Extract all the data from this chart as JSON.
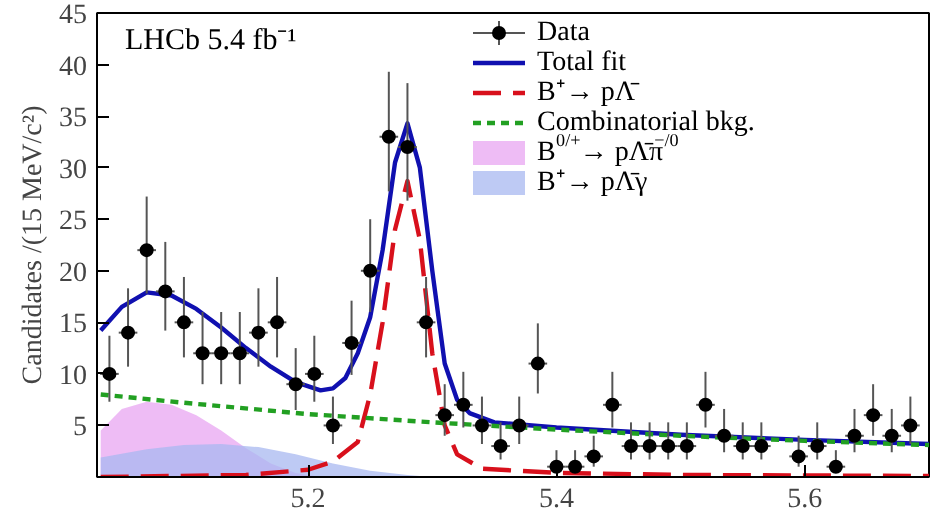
{
  "chart_data": {
    "type": "scatter",
    "ylabel": "Candidates /(15 MeV/c²)",
    "xlim": [
      5.03,
      5.7
    ],
    "ylim": [
      0,
      45
    ],
    "xticks": [
      5.2,
      5.4,
      5.6
    ],
    "yticks": [
      5,
      10,
      15,
      20,
      25,
      30,
      35,
      40,
      45
    ],
    "grid": false,
    "legend": "top right",
    "annotations": [
      "LHCb  5.4 fb⁻¹"
    ],
    "series": [
      {
        "name": "Data",
        "color": "#000000",
        "marker": "circle",
        "x": [
          5.04,
          5.055,
          5.07,
          5.085,
          5.1,
          5.115,
          5.13,
          5.145,
          5.16,
          5.175,
          5.19,
          5.205,
          5.22,
          5.235,
          5.25,
          5.265,
          5.28,
          5.295,
          5.31,
          5.325,
          5.34,
          5.355,
          5.37,
          5.385,
          5.4,
          5.415,
          5.43,
          5.445,
          5.46,
          5.475,
          5.49,
          5.505,
          5.52,
          5.535,
          5.55,
          5.565,
          5.595,
          5.61,
          5.625,
          5.64,
          5.655,
          5.67,
          5.685
        ],
        "values": [
          10,
          14,
          22,
          18,
          15,
          12,
          12,
          12,
          14,
          15,
          9,
          10,
          5,
          13,
          20,
          33,
          32,
          15,
          6,
          7,
          5,
          3,
          5,
          11,
          1,
          1,
          2,
          7,
          3,
          3,
          3,
          3,
          7,
          4,
          3,
          3,
          2,
          3,
          1,
          4,
          6,
          4,
          5
        ],
        "errors": [
          [
            7.3,
            13.7
          ],
          [
            10.7,
            18.3
          ],
          [
            17.8,
            27.2
          ],
          [
            14.2,
            22.8
          ],
          [
            11.6,
            19.4
          ],
          [
            9.0,
            16.0
          ],
          [
            9.0,
            16.0
          ],
          [
            9.0,
            16.0
          ],
          [
            10.7,
            18.3
          ],
          [
            11.6,
            19.4
          ],
          [
            6.5,
            12.5
          ],
          [
            7.3,
            13.7
          ],
          [
            3.2,
            7.8
          ],
          [
            9.9,
            17.1
          ],
          [
            16.0,
            25.0
          ],
          [
            27.7,
            39.3
          ],
          [
            26.8,
            38.2
          ],
          [
            11.6,
            19.4
          ],
          [
            4.0,
            9.0
          ],
          [
            4.8,
            10.2
          ],
          [
            3.2,
            7.8
          ],
          [
            1.7,
            5.3
          ],
          [
            3.2,
            7.8
          ],
          [
            8.1,
            14.9
          ],
          [
            0.4,
            2.6
          ],
          [
            0.4,
            2.6
          ],
          [
            1.0,
            4.0
          ],
          [
            4.8,
            10.2
          ],
          [
            1.7,
            5.3
          ],
          [
            1.7,
            5.3
          ],
          [
            1.7,
            5.3
          ],
          [
            1.7,
            5.3
          ],
          [
            4.8,
            10.2
          ],
          [
            2.4,
            6.6
          ],
          [
            1.7,
            5.3
          ],
          [
            1.7,
            5.3
          ],
          [
            1.0,
            4.0
          ],
          [
            1.7,
            5.3
          ],
          [
            0.4,
            2.6
          ],
          [
            2.4,
            6.6
          ],
          [
            4.0,
            9.0
          ],
          [
            2.4,
            6.6
          ],
          [
            3.2,
            7.8
          ]
        ],
        "xerrors": [
          0.0075,
          0.0075,
          0.0075,
          0.0075,
          0.0075,
          0.0075,
          0.0075,
          0.0075,
          0.0075,
          0.0075,
          0.0075,
          0.0075,
          0.0075,
          0.0075,
          0.0075,
          0.0075,
          0.0075,
          0.0075,
          0.0075,
          0.0075,
          0.0075,
          0.0075,
          0.0075,
          0.0075,
          0.0075,
          0.0075,
          0.0075,
          0.0075,
          0.0075,
          0.0075,
          0.0075,
          0.0075,
          0.0075,
          0.0075,
          0.0075,
          0.0075,
          0.0075,
          0.0075,
          0.0075,
          0.0075,
          0.0075,
          0.0075,
          0.0075
        ]
      },
      {
        "name": "Total fit",
        "type": "line",
        "color": "#1010b0",
        "line_style": "solid",
        "x": [
          5.033,
          5.05,
          5.07,
          5.09,
          5.11,
          5.13,
          5.15,
          5.17,
          5.19,
          5.21,
          5.22,
          5.23,
          5.24,
          5.25,
          5.26,
          5.27,
          5.28,
          5.29,
          5.3,
          5.31,
          5.32,
          5.33,
          5.35,
          5.4,
          5.5,
          5.6,
          5.7
        ],
        "values": [
          14.2,
          16.5,
          17.9,
          17.6,
          16.3,
          14.5,
          12.5,
          10.7,
          9.2,
          8.4,
          8.6,
          9.6,
          12,
          15.5,
          22,
          30.5,
          34.3,
          30,
          20,
          11,
          7.5,
          6.2,
          5.3,
          4.8,
          4.1,
          3.6,
          3.2
        ]
      },
      {
        "name": "B⁺→ pΛ̄",
        "type": "line",
        "color": "#d8101c",
        "line_style": "dashed",
        "x": [
          5.033,
          5.15,
          5.2,
          5.22,
          5.24,
          5.25,
          5.26,
          5.27,
          5.28,
          5.29,
          5.3,
          5.31,
          5.32,
          5.34,
          5.4,
          5.5,
          5.7
        ],
        "values": [
          0,
          0.2,
          0.7,
          1.5,
          3.4,
          8,
          15,
          24,
          28.7,
          23,
          12,
          5,
          2.2,
          0.8,
          0.4,
          0.2,
          0.1
        ]
      },
      {
        "name": "Combinatorial bkg.",
        "type": "line",
        "color": "#22a022",
        "line_style": "dotted",
        "x": [
          5.033,
          5.1,
          5.2,
          5.3,
          5.4,
          5.5,
          5.6,
          5.7
        ],
        "values": [
          8.0,
          7.2,
          6.1,
          5.3,
          4.6,
          4.0,
          3.5,
          3.1
        ]
      },
      {
        "name": "B$^{0/+}$→ pΛ̄π$^{−/0}$",
        "type": "area",
        "color": "#e8a6f2",
        "x": [
          5.033,
          5.05,
          5.07,
          5.09,
          5.11,
          5.13,
          5.15,
          5.17,
          5.19,
          5.21
        ],
        "values": [
          4.5,
          6.6,
          7.3,
          7.0,
          6.0,
          4.5,
          2.8,
          1.3,
          0.4,
          0
        ]
      },
      {
        "name": "B⁺→ pΛ̄γ",
        "type": "area",
        "color": "#a8b8f0",
        "x": [
          5.033,
          5.07,
          5.1,
          5.13,
          5.16,
          5.19,
          5.22,
          5.25,
          5.28,
          5.3
        ],
        "values": [
          1.9,
          2.7,
          3.1,
          3.2,
          2.9,
          2.2,
          1.3,
          0.6,
          0.2,
          0
        ]
      }
    ]
  }
}
